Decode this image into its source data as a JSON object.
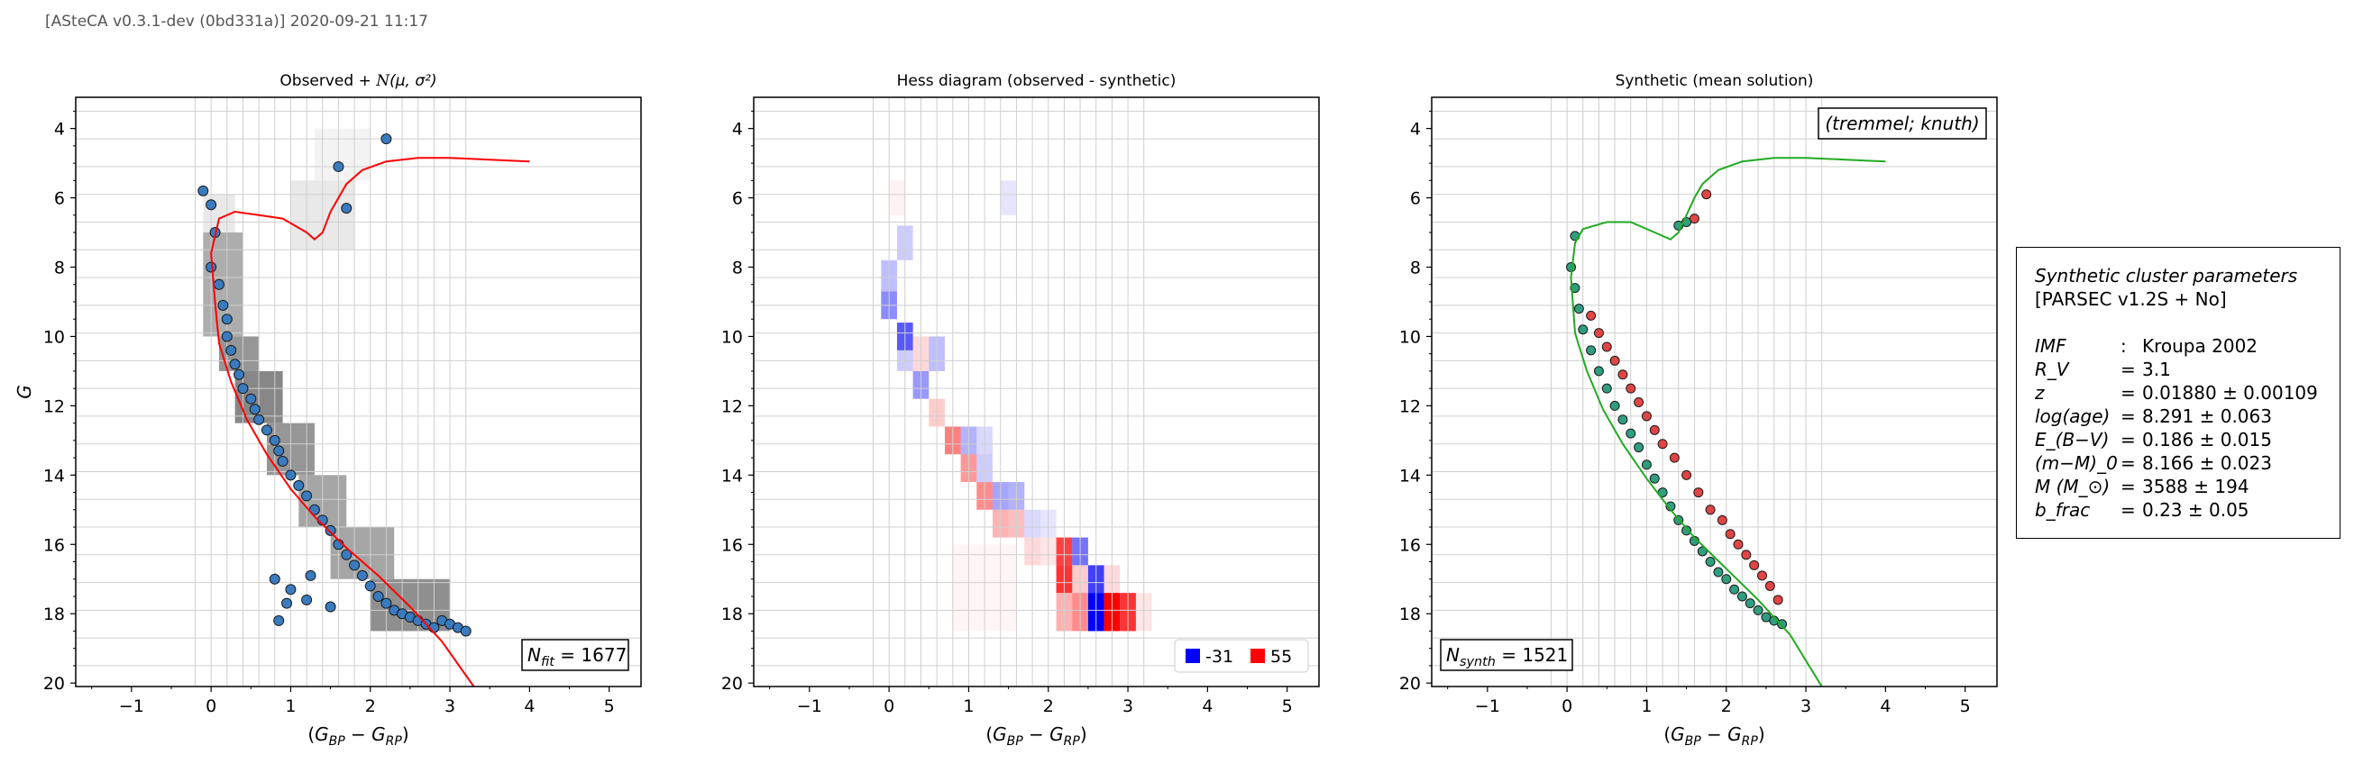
{
  "header": "[ASteCA v0.3.1-dev (0bd331a)] 2020-09-21 11:17",
  "colors": {
    "scatter_fill": "#3a7bbf",
    "synth_main": "#2f9e80",
    "synth_binary": "#e04545",
    "isochrone_obs": "#ff0000",
    "isochrone_synth": "#22aa22",
    "hess_negative": "#0000ff",
    "hess_positive": "#ff0000"
  },
  "chart_data": [
    {
      "type": "scatter",
      "title": "Observed + N(μ,σ²)",
      "xlabel": "(G_BP − G_RP)",
      "ylabel": "G",
      "xlim": [
        -1.7,
        5.4
      ],
      "ylim": [
        20.1,
        3.1
      ],
      "y_inverted": true,
      "xticks": [
        -1,
        0,
        1,
        2,
        3,
        4,
        5
      ],
      "yticks": [
        4,
        6,
        8,
        10,
        12,
        14,
        16,
        18,
        20
      ],
      "grid": true,
      "annotation": "N_fit = 1677",
      "series": [
        {
          "kind": "points",
          "x": [
            -0.1,
            0.0,
            0.05,
            0.0,
            0.1,
            0.15,
            0.2,
            0.2,
            0.25,
            0.3,
            0.35,
            0.4,
            0.5,
            0.55,
            0.6,
            0.7,
            0.8,
            0.85,
            0.9,
            1.0,
            1.1,
            1.2,
            1.3,
            1.4,
            1.5,
            1.6,
            1.7,
            1.8,
            1.9,
            2.0,
            2.1,
            2.2,
            2.3,
            2.4,
            2.5,
            2.6,
            2.7,
            2.8,
            2.9,
            3.0,
            3.1,
            3.2,
            2.2,
            1.6,
            1.7,
            0.8,
            1.0,
            1.2,
            1.5,
            1.25,
            0.85,
            0.95
          ],
          "y": [
            5.8,
            6.2,
            7.0,
            8.0,
            8.5,
            9.1,
            9.5,
            10.0,
            10.4,
            10.8,
            11.1,
            11.5,
            11.8,
            12.1,
            12.4,
            12.7,
            13.0,
            13.3,
            13.6,
            14.0,
            14.3,
            14.6,
            15.0,
            15.3,
            15.6,
            16.0,
            16.3,
            16.6,
            16.9,
            17.2,
            17.5,
            17.7,
            17.9,
            18.0,
            18.1,
            18.2,
            18.3,
            18.4,
            18.2,
            18.3,
            18.4,
            18.5,
            4.3,
            5.1,
            6.3,
            17.0,
            17.3,
            17.6,
            17.8,
            16.9,
            18.2,
            17.7
          ]
        },
        {
          "kind": "isochrone",
          "x": [
            3.3,
            2.9,
            2.5,
            2.1,
            1.7,
            1.3,
            1.0,
            0.7,
            0.45,
            0.25,
            0.1,
            0.05,
            0.0,
            0.1,
            0.3,
            0.6,
            0.9,
            1.2,
            1.3,
            1.4,
            1.5,
            1.6,
            1.7,
            1.9,
            2.2,
            2.6,
            3.0,
            3.5,
            4.0
          ],
          "y": [
            20.1,
            18.8,
            17.8,
            16.9,
            16.1,
            15.2,
            14.4,
            13.4,
            12.4,
            11.3,
            10.2,
            9.0,
            7.6,
            6.6,
            6.4,
            6.5,
            6.6,
            7.0,
            7.2,
            7.0,
            6.4,
            6.0,
            5.6,
            5.2,
            4.95,
            4.85,
            4.85,
            4.9,
            4.95
          ]
        }
      ],
      "hess_bins": [
        {
          "x0": -0.1,
          "x1": 0.3,
          "y0": 5.9,
          "y1": 7.0,
          "level": 0.15
        },
        {
          "x0": -0.1,
          "x1": 0.4,
          "y0": 7.0,
          "y1": 10.0,
          "level": 0.55
        },
        {
          "x0": 0.1,
          "x1": 0.6,
          "y0": 10.0,
          "y1": 11.0,
          "level": 0.7
        },
        {
          "x0": 0.3,
          "x1": 0.9,
          "y0": 11.0,
          "y1": 12.5,
          "level": 0.8
        },
        {
          "x0": 0.7,
          "x1": 1.3,
          "y0": 12.5,
          "y1": 14.0,
          "level": 0.7
        },
        {
          "x0": 1.1,
          "x1": 1.7,
          "y0": 14.0,
          "y1": 15.5,
          "level": 0.6
        },
        {
          "x0": 1.5,
          "x1": 2.3,
          "y0": 15.5,
          "y1": 17.0,
          "level": 0.6
        },
        {
          "x0": 2.0,
          "x1": 3.0,
          "y0": 17.0,
          "y1": 18.5,
          "level": 0.75
        },
        {
          "x0": 1.0,
          "x1": 1.8,
          "y0": 5.5,
          "y1": 7.5,
          "level": 0.15
        },
        {
          "x0": 1.3,
          "x1": 2.0,
          "y0": 4.0,
          "y1": 5.5,
          "level": 0.08
        }
      ]
    },
    {
      "type": "heatmap",
      "title": "Hess diagram (observed - synthetic)",
      "xlabel": "(G_BP − G_RP)",
      "xlim": [
        -1.7,
        5.4
      ],
      "ylim": [
        20.1,
        3.1
      ],
      "y_inverted": true,
      "xticks": [
        -1,
        0,
        1,
        2,
        3,
        4,
        5
      ],
      "yticks": [
        4,
        6,
        8,
        10,
        12,
        14,
        16,
        18,
        20
      ],
      "grid": true,
      "legend": [
        {
          "label": "-31",
          "color": "#0000ff"
        },
        {
          "label": "55",
          "color": "#ff0000"
        }
      ],
      "cells": [
        {
          "x0": 0.0,
          "x1": 0.2,
          "y0": 5.5,
          "y1": 6.5,
          "v": 0.05
        },
        {
          "x0": 1.4,
          "x1": 1.6,
          "y0": 5.5,
          "y1": 6.5,
          "v": -0.1
        },
        {
          "x0": 0.1,
          "x1": 0.3,
          "y0": 6.8,
          "y1": 7.8,
          "v": -0.2
        },
        {
          "x0": -0.1,
          "x1": 0.1,
          "y0": 7.8,
          "y1": 8.7,
          "v": -0.25
        },
        {
          "x0": -0.1,
          "x1": 0.1,
          "y0": 8.7,
          "y1": 9.5,
          "v": -0.45
        },
        {
          "x0": 0.1,
          "x1": 0.3,
          "y0": 9.6,
          "y1": 10.4,
          "v": -0.65
        },
        {
          "x0": 0.1,
          "x1": 0.3,
          "y0": 10.4,
          "y1": 11.0,
          "v": -0.2
        },
        {
          "x0": 0.3,
          "x1": 0.5,
          "y0": 10.0,
          "y1": 11.0,
          "v": 0.15
        },
        {
          "x0": 0.5,
          "x1": 0.7,
          "y0": 10.0,
          "y1": 11.0,
          "v": -0.25
        },
        {
          "x0": 0.3,
          "x1": 0.5,
          "y0": 11.0,
          "y1": 11.8,
          "v": -0.4
        },
        {
          "x0": 0.5,
          "x1": 0.7,
          "y0": 11.8,
          "y1": 12.6,
          "v": 0.2
        },
        {
          "x0": 0.7,
          "x1": 0.9,
          "y0": 12.6,
          "y1": 13.4,
          "v": 0.5
        },
        {
          "x0": 0.9,
          "x1": 1.1,
          "y0": 12.6,
          "y1": 13.4,
          "v": -0.3
        },
        {
          "x0": 1.1,
          "x1": 1.3,
          "y0": 12.6,
          "y1": 13.4,
          "v": -0.15
        },
        {
          "x0": 0.9,
          "x1": 1.1,
          "y0": 13.4,
          "y1": 14.2,
          "v": 0.4
        },
        {
          "x0": 1.1,
          "x1": 1.3,
          "y0": 13.4,
          "y1": 14.2,
          "v": -0.2
        },
        {
          "x0": 1.1,
          "x1": 1.3,
          "y0": 14.2,
          "y1": 15.0,
          "v": 0.45
        },
        {
          "x0": 1.3,
          "x1": 1.5,
          "y0": 14.2,
          "y1": 15.0,
          "v": -0.35
        },
        {
          "x0": 1.5,
          "x1": 1.7,
          "y0": 14.2,
          "y1": 15.0,
          "v": -0.3
        },
        {
          "x0": 1.3,
          "x1": 1.5,
          "y0": 15.0,
          "y1": 15.8,
          "v": 0.3
        },
        {
          "x0": 1.5,
          "x1": 1.7,
          "y0": 15.0,
          "y1": 15.8,
          "v": 0.25
        },
        {
          "x0": 1.7,
          "x1": 1.9,
          "y0": 15.0,
          "y1": 15.8,
          "v": -0.15
        },
        {
          "x0": 1.9,
          "x1": 2.1,
          "y0": 15.0,
          "y1": 15.8,
          "v": -0.1
        },
        {
          "x0": 1.7,
          "x1": 1.9,
          "y0": 15.8,
          "y1": 16.6,
          "v": 0.15
        },
        {
          "x0": 1.9,
          "x1": 2.1,
          "y0": 15.8,
          "y1": 16.6,
          "v": 0.1
        },
        {
          "x0": 2.1,
          "x1": 2.3,
          "y0": 15.8,
          "y1": 16.6,
          "v": 0.75
        },
        {
          "x0": 2.3,
          "x1": 2.5,
          "y0": 15.8,
          "y1": 16.6,
          "v": -0.55
        },
        {
          "x0": 2.1,
          "x1": 2.3,
          "y0": 16.6,
          "y1": 17.4,
          "v": 0.8
        },
        {
          "x0": 2.3,
          "x1": 2.5,
          "y0": 16.6,
          "y1": 17.4,
          "v": 0.2
        },
        {
          "x0": 2.5,
          "x1": 2.7,
          "y0": 16.6,
          "y1": 17.4,
          "v": -0.75
        },
        {
          "x0": 2.7,
          "x1": 2.9,
          "y0": 16.6,
          "y1": 17.4,
          "v": 0.15
        },
        {
          "x0": 2.1,
          "x1": 2.3,
          "y0": 17.4,
          "y1": 18.5,
          "v": 0.3
        },
        {
          "x0": 2.3,
          "x1": 2.5,
          "y0": 17.4,
          "y1": 18.5,
          "v": 0.45
        },
        {
          "x0": 2.5,
          "x1": 2.7,
          "y0": 17.4,
          "y1": 18.5,
          "v": -1.0
        },
        {
          "x0": 2.7,
          "x1": 2.9,
          "y0": 17.4,
          "y1": 18.5,
          "v": 1.0
        },
        {
          "x0": 2.9,
          "x1": 3.1,
          "y0": 17.4,
          "y1": 18.5,
          "v": 0.8
        },
        {
          "x0": 3.1,
          "x1": 3.3,
          "y0": 17.4,
          "y1": 18.5,
          "v": 0.1
        },
        {
          "x0": 0.8,
          "x1": 1.6,
          "y0": 16.0,
          "y1": 18.5,
          "v": 0.04
        }
      ]
    },
    {
      "type": "scatter",
      "title": "Synthetic (mean solution)",
      "xlabel": "(G_BP − G_RP)",
      "xlim": [
        -1.7,
        5.4
      ],
      "ylim": [
        20.1,
        3.1
      ],
      "y_inverted": true,
      "xticks": [
        -1,
        0,
        1,
        2,
        3,
        4,
        5
      ],
      "yticks": [
        4,
        6,
        8,
        10,
        12,
        14,
        16,
        18,
        20
      ],
      "grid": true,
      "annotation": "N_synth = 1521",
      "box_label": "(tremmel; knuth)",
      "series": [
        {
          "kind": "single",
          "x": [
            0.1,
            0.05,
            0.1,
            0.15,
            0.2,
            0.3,
            0.4,
            0.5,
            0.6,
            0.7,
            0.8,
            0.9,
            1.0,
            1.1,
            1.2,
            1.3,
            1.4,
            1.5,
            1.6,
            1.7,
            1.8,
            1.9,
            2.0,
            2.1,
            2.2,
            2.3,
            2.4,
            2.5,
            2.6,
            2.7,
            1.4,
            1.5
          ],
          "y": [
            7.1,
            8.0,
            8.6,
            9.2,
            9.8,
            10.4,
            11.0,
            11.5,
            12.0,
            12.4,
            12.8,
            13.2,
            13.7,
            14.1,
            14.5,
            14.9,
            15.3,
            15.6,
            15.9,
            16.2,
            16.5,
            16.8,
            17.0,
            17.3,
            17.5,
            17.7,
            17.9,
            18.1,
            18.2,
            18.3,
            6.8,
            6.7
          ]
        },
        {
          "kind": "binary",
          "x": [
            0.3,
            0.4,
            0.5,
            0.6,
            0.7,
            0.8,
            0.9,
            1.0,
            1.1,
            1.2,
            1.35,
            1.5,
            1.65,
            1.8,
            1.95,
            2.05,
            2.15,
            2.25,
            2.35,
            2.45,
            2.55,
            2.65,
            1.6,
            1.75
          ],
          "y": [
            9.4,
            9.9,
            10.3,
            10.7,
            11.1,
            11.5,
            11.9,
            12.3,
            12.7,
            13.1,
            13.5,
            14.0,
            14.5,
            15.0,
            15.3,
            15.7,
            16.0,
            16.3,
            16.6,
            16.9,
            17.2,
            17.6,
            6.6,
            5.9
          ]
        },
        {
          "kind": "isochrone",
          "x": [
            3.2,
            2.8,
            2.4,
            2.0,
            1.6,
            1.3,
            1.0,
            0.7,
            0.45,
            0.25,
            0.1,
            0.05,
            0.1,
            0.2,
            0.5,
            0.8,
            1.1,
            1.3,
            1.4,
            1.5,
            1.6,
            1.7,
            1.9,
            2.2,
            2.6,
            3.0,
            3.5,
            4.0
          ],
          "y": [
            20.1,
            18.6,
            17.6,
            16.7,
            15.8,
            15.0,
            14.1,
            13.1,
            12.1,
            11.0,
            9.9,
            8.3,
            7.3,
            6.9,
            6.7,
            6.7,
            7.0,
            7.2,
            7.0,
            6.5,
            6.0,
            5.6,
            5.2,
            4.95,
            4.85,
            4.85,
            4.9,
            4.95
          ]
        }
      ]
    }
  ],
  "params": {
    "title": "Synthetic cluster parameters",
    "subtitle": "[PARSEC v1.2S + No]",
    "rows": [
      {
        "key": "IMF",
        "sep": ":",
        "val": "Kroupa 2002"
      },
      {
        "key": "R_V",
        "sep": "=",
        "val": "3.1"
      },
      {
        "key": "z",
        "sep": "=",
        "val": "0.01880 ± 0.00109"
      },
      {
        "key": "log(age)",
        "sep": "=",
        "val": "8.291 ± 0.063"
      },
      {
        "key": "E_(B−V)",
        "sep": "=",
        "val": "0.186 ± 0.015"
      },
      {
        "key": "(m−M)_0",
        "sep": "=",
        "val": "8.166 ± 0.023"
      },
      {
        "key": "M (M_⊙)",
        "sep": "=",
        "val": "3588 ± 194"
      },
      {
        "key": "b_frac",
        "sep": "=",
        "val": "0.23 ± 0.05"
      }
    ]
  }
}
